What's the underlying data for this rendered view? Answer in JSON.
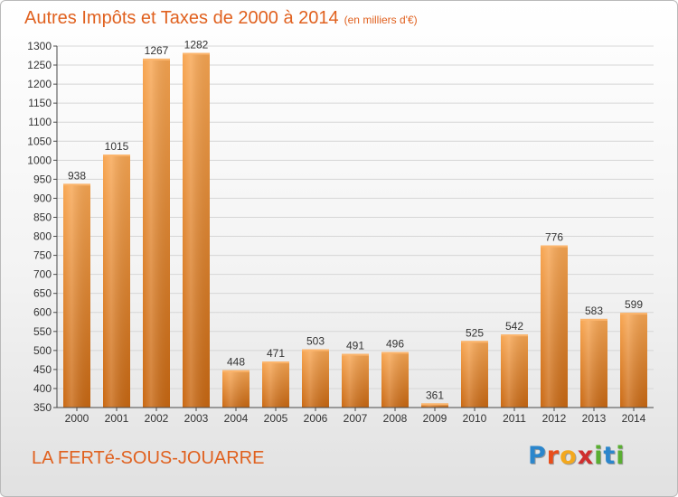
{
  "chart_data": {
    "type": "bar",
    "title": "Autres Impôts et Taxes de 2000 à 2014",
    "subtitle": "(en milliers d'€)",
    "xlabel": "",
    "ylabel": "",
    "categories": [
      "2000",
      "2001",
      "2002",
      "2003",
      "2004",
      "2005",
      "2006",
      "2007",
      "2008",
      "2009",
      "2010",
      "2011",
      "2012",
      "2013",
      "2014"
    ],
    "values": [
      938,
      1015,
      1267,
      1282,
      448,
      471,
      503,
      491,
      496,
      361,
      525,
      542,
      776,
      583,
      599
    ],
    "ylim": [
      350,
      1300
    ],
    "yticks": [
      350,
      400,
      450,
      500,
      550,
      600,
      650,
      700,
      750,
      800,
      850,
      900,
      950,
      1000,
      1050,
      1100,
      1150,
      1200,
      1250,
      1300
    ],
    "grid": true,
    "legend": "none",
    "bar_color": "#f08a2c"
  },
  "footer": {
    "place": "LA FERTé-SOUS-JOUARRE",
    "logo_letters": [
      "P",
      "r",
      "o",
      "x",
      "i",
      "t",
      "i"
    ],
    "logo_colors": [
      "#2b86cc",
      "#e94e1b",
      "#f3a81e",
      "#cf2e2e",
      "#5aae32",
      "#2b86cc",
      "#5aae32"
    ]
  },
  "colors": {
    "accent": "#e0611f",
    "grid": "#d6d6d6",
    "axis": "#4a4a4a"
  }
}
